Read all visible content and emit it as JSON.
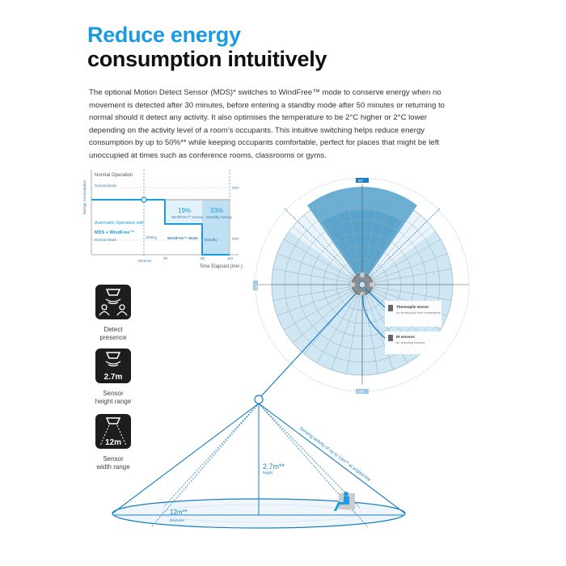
{
  "heading": {
    "line1": "Reduce energy",
    "line2": "consumption intuitively"
  },
  "body_text": "The optional Motion Detect Sensor (MDS)* switches to WindFree™ mode to conserve energy when no movement is detected after 30 minutes, before entering a standby mode after 50 minutes or returning to normal should it detect any activity. It also optimises the temperature to be 2°C higher or 2°C lower depending on the activity level of a room’s occupants. This intuitive switching helps reduce energy consumption by up to 50%** while keeping occupants comfortable, perfect for places that might be left unoccupied at times such as conference rooms, classrooms or gyms.",
  "operation_chart": {
    "ylabel": "Energy Consumption",
    "normal_label": "Normal Operation",
    "normal_mode": "Normal Mode",
    "auto_label": "Automatic Operation with",
    "auto_label2": "MDS + WindFree™",
    "auto_normal_mode": "Normal Mode",
    "saving1_value": "19%",
    "saving1_label": "WindFree™ Saving",
    "saving2_value": "33%",
    "saving2_label": "Standby Saving",
    "seg_setting": "Setting",
    "seg_windfree": "WindFree™ Mode",
    "seg_standby": "Standby",
    "xlabel_absence": "Absence",
    "xlabel_time": "Time Elapsed (min.)",
    "tick_30": "30",
    "tick_50": "50",
    "tick_end": "110",
    "right_val1": "OFF",
    "right_val2": "OFF"
  },
  "polar_diagram": {
    "top_badge": "90°",
    "left_badge": "180°",
    "bottom_badge": "270°",
    "callout1_title": "Thermopile sensor",
    "callout1_text": "for sensing the floor temperature",
    "callout2_title": "IR sensors",
    "callout2_text": "for detecting humans"
  },
  "features": [
    {
      "icon": "detect-presence-icon",
      "label1": "Detect",
      "label2": "presence"
    },
    {
      "icon": "sensor-height-icon",
      "value": "2.7m",
      "label1": "Sensor",
      "label2": "height range"
    },
    {
      "icon": "sensor-width-icon",
      "value": "12m",
      "label1": "Sensor",
      "label2": "width range"
    }
  ],
  "cone": {
    "height_value": "2.7m**",
    "height_label": "height",
    "diameter_value": "12m**",
    "diameter_label": "Diameter",
    "slant_text": "Sensing activity of up to 10m** at angled line"
  },
  "colors": {
    "accent": "#1a9be0",
    "dark_fill": "#3d8fbe",
    "light_fill": "#cfe6f3",
    "icon_bg": "#1d1d1d"
  }
}
